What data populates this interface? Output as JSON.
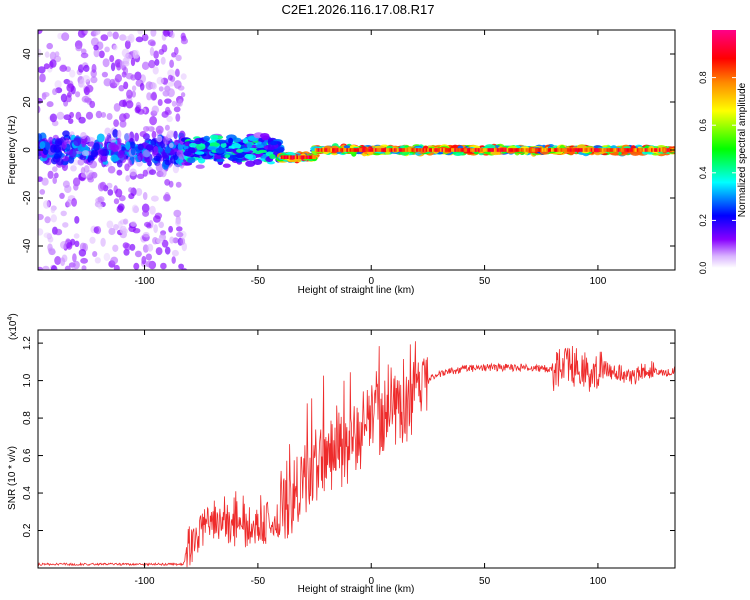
{
  "figure": {
    "title": "C2E1.2026.116.17.08.R17",
    "colors": {
      "snr_line": "#ee2b2b",
      "axis": "#000000",
      "background": "#ffffff"
    }
  },
  "chart_data": [
    {
      "type": "heatmap",
      "xlabel": "Height of straight line (km)",
      "ylabel": "Frequency (Hz)",
      "xlim": [
        -147,
        134
      ],
      "ylim": [
        -50,
        50
      ],
      "xticks": [
        -100,
        -50,
        0,
        50,
        100
      ],
      "yticks": [
        -40,
        -20,
        0,
        20,
        40
      ],
      "grid": false,
      "signal": [
        {
          "x_range": [
            -147,
            -82
          ],
          "freq_spread": 48,
          "amplitude": 0.15
        },
        {
          "x_range": [
            -82,
            -40
          ],
          "freq_spread": 6,
          "amplitude": 0.45
        },
        {
          "x_range": [
            -40,
            -25
          ],
          "freq_center": -3,
          "freq_spread": 2,
          "amplitude": 0.95
        },
        {
          "x_range": [
            -25,
            134
          ],
          "freq_center": 0,
          "freq_spread": 2,
          "amplitude": 0.9
        }
      ],
      "colorbar": {
        "label": "Normalized spectral amplitude",
        "range": [
          0,
          1
        ],
        "ticks": [
          0.0,
          0.2,
          0.4,
          0.6,
          0.8
        ],
        "tick_labels": [
          "0.0",
          "0.2",
          "0.4",
          "0.6",
          "0.8"
        ],
        "colors": [
          "#ffffff",
          "#8800ff",
          "#0000ff",
          "#00ffff",
          "#00ff00",
          "#ffff00",
          "#ff8800",
          "#ff0000",
          "#ff0088"
        ]
      }
    },
    {
      "type": "line",
      "xlabel": "Height of straight line (km)",
      "ylabel": "SNR (10 * v/v)",
      "y_multiplier": "(x10",
      "y_multiplier_exp": "4",
      "y_multiplier_close": ")",
      "xlim": [
        -147,
        134
      ],
      "ylim": [
        0,
        1.27
      ],
      "xticks": [
        -100,
        -50,
        0,
        50,
        100
      ],
      "yticks": [
        0.2,
        0.4,
        0.6,
        0.8,
        1.0,
        1.2
      ],
      "ytick_labels": [
        "0.2",
        "0.4",
        "0.6",
        "0.8",
        "1.0",
        "1.2"
      ],
      "grid": false,
      "series": [
        {
          "x": [
            -147,
            -120,
            -100,
            -90,
            -83,
            -80,
            -75,
            -70,
            -60,
            -50,
            -40,
            -35,
            -30,
            -25,
            -20,
            -15,
            -10,
            -5,
            0,
            5,
            10,
            15,
            20,
            25,
            30,
            35,
            40,
            50,
            60,
            70,
            80,
            85,
            90,
            95,
            100,
            105,
            110,
            115,
            120,
            122,
            125,
            130,
            134
          ],
          "y": [
            0.02,
            0.02,
            0.02,
            0.02,
            0.02,
            0.1,
            0.2,
            0.25,
            0.2,
            0.2,
            0.25,
            0.35,
            0.45,
            0.55,
            0.58,
            0.6,
            0.65,
            0.72,
            0.78,
            0.8,
            0.83,
            0.85,
            0.95,
            1.0,
            1.03,
            1.05,
            1.06,
            1.07,
            1.07,
            1.07,
            1.06,
            1.07,
            1.08,
            1.05,
            1.07,
            1.05,
            1.04,
            1.02,
            1.05,
            1.06,
            1.05,
            1.04,
            1.05
          ]
        }
      ]
    }
  ]
}
